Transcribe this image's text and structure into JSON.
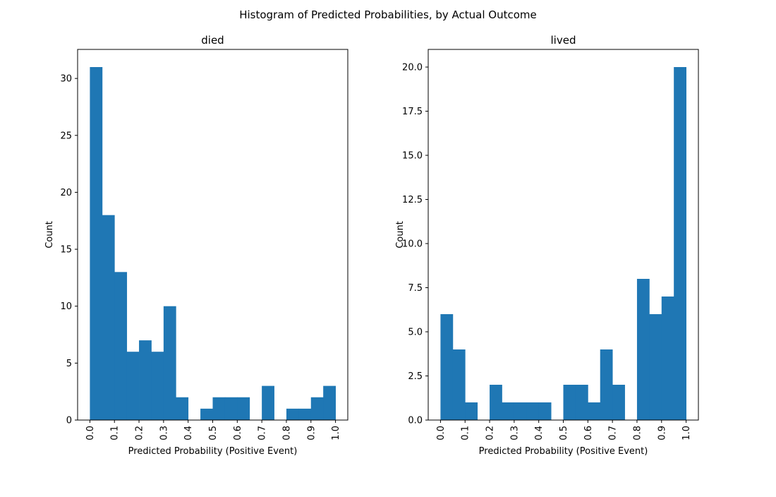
{
  "figure": {
    "suptitle": "Histogram of Predicted Probabilities, by Actual Outcome"
  },
  "colors": {
    "bar": "#1f77b4",
    "axis": "#000000",
    "background": "#ffffff"
  },
  "chart_data": [
    {
      "type": "bar",
      "title": "died",
      "xlabel": "Predicted Probability (Positive Event)",
      "ylabel": "Count",
      "bin_width": 0.05,
      "bin_starts": [
        0.0,
        0.05,
        0.1,
        0.15,
        0.2,
        0.25,
        0.3,
        0.35,
        0.4,
        0.45,
        0.5,
        0.55,
        0.6,
        0.65,
        0.7,
        0.75,
        0.8,
        0.85,
        0.9,
        0.95
      ],
      "values": [
        31,
        18,
        13,
        6,
        7,
        6,
        10,
        2,
        0,
        1,
        2,
        2,
        2,
        0,
        3,
        0,
        1,
        1,
        2,
        3
      ],
      "xlim": [
        -0.05,
        1.05
      ],
      "ylim": [
        0,
        32.55
      ],
      "xticks": [
        0.0,
        0.1,
        0.2,
        0.3,
        0.4,
        0.5,
        0.6,
        0.7,
        0.8,
        0.9,
        1.0
      ],
      "xtick_labels": [
        "0.0",
        "0.1",
        "0.2",
        "0.3",
        "0.4",
        "0.5",
        "0.6",
        "0.7",
        "0.8",
        "0.9",
        "1.0"
      ],
      "yticks": [
        0,
        5,
        10,
        15,
        20,
        25,
        30
      ],
      "ytick_labels": [
        "0",
        "5",
        "10",
        "15",
        "20",
        "25",
        "30"
      ],
      "grid": false,
      "legend": "none"
    },
    {
      "type": "bar",
      "title": "lived",
      "xlabel": "Predicted Probability (Positive Event)",
      "ylabel": "Count",
      "bin_width": 0.05,
      "bin_starts": [
        0.0,
        0.05,
        0.1,
        0.15,
        0.2,
        0.25,
        0.3,
        0.35,
        0.4,
        0.45,
        0.5,
        0.55,
        0.6,
        0.65,
        0.7,
        0.75,
        0.8,
        0.85,
        0.9,
        0.95
      ],
      "values": [
        6,
        4,
        1,
        0,
        2,
        1,
        1,
        1,
        1,
        0,
        2,
        2,
        1,
        4,
        2,
        0,
        8,
        6,
        7,
        20
      ],
      "xlim": [
        -0.05,
        1.05
      ],
      "ylim": [
        0,
        21.0
      ],
      "xticks": [
        0.0,
        0.1,
        0.2,
        0.3,
        0.4,
        0.5,
        0.6,
        0.7,
        0.8,
        0.9,
        1.0
      ],
      "xtick_labels": [
        "0.0",
        "0.1",
        "0.2",
        "0.3",
        "0.4",
        "0.5",
        "0.6",
        "0.7",
        "0.8",
        "0.9",
        "1.0"
      ],
      "yticks": [
        0,
        2.5,
        5,
        7.5,
        10,
        12.5,
        15,
        17.5,
        20
      ],
      "ytick_labels": [
        "0.0",
        "2.5",
        "5.0",
        "7.5",
        "10.0",
        "12.5",
        "15.0",
        "17.5",
        "20.0"
      ],
      "grid": false,
      "legend": "none"
    }
  ]
}
